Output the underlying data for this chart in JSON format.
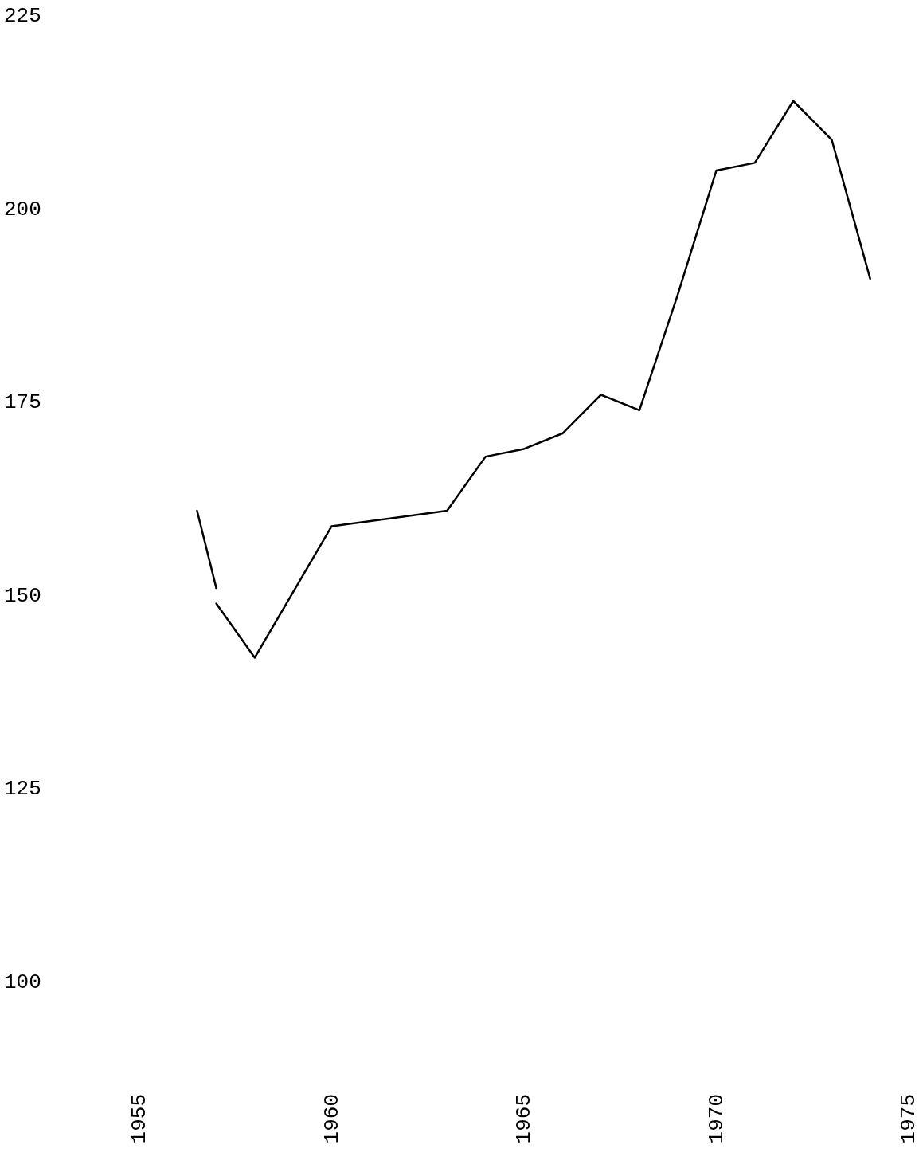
{
  "chart_data": {
    "type": "line",
    "x": [
      1957,
      1958,
      1960,
      1963,
      1964,
      1965,
      1966,
      1967,
      1968,
      1969,
      1970,
      1971,
      1972,
      1973,
      1974
    ],
    "series": [
      {
        "color": "#000000",
        "x": [
          1956.5,
          1957
        ],
        "values": [
          161,
          151
        ]
      },
      {
        "color": "#000000",
        "values": [
          149,
          142,
          159,
          161,
          168,
          169,
          171,
          176,
          174,
          189,
          205,
          206,
          214,
          209,
          191
        ]
      }
    ],
    "xlim": [
      1955,
      1975
    ],
    "xticks": [
      1955,
      1960,
      1965,
      1970,
      1975
    ],
    "ylim": [
      100,
      225
    ],
    "yticks": [
      100,
      125,
      150,
      175,
      200,
      225
    ],
    "grid": false,
    "marker": "none",
    "line_style": "solid"
  }
}
